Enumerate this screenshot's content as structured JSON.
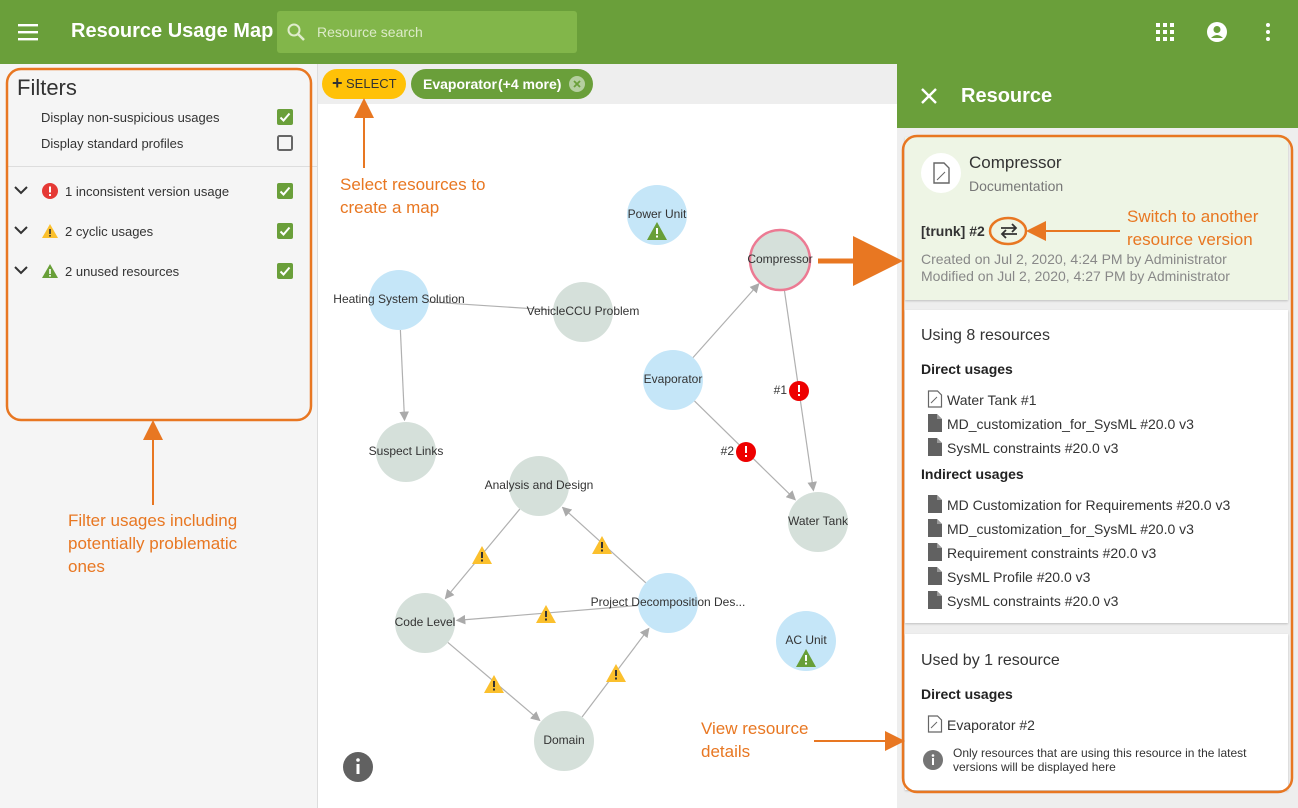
{
  "app_bar": {
    "title": "Resource Usage Map",
    "search_placeholder": "Resource search"
  },
  "filters": {
    "title": "Filters",
    "options": [
      {
        "label": "Display non-suspicious usages",
        "checked": true
      },
      {
        "label": "Display standard profiles",
        "checked": false
      }
    ],
    "groups": [
      {
        "label": "1 inconsistent version usage",
        "severity": "error",
        "checked": true
      },
      {
        "label": "2 cyclic usages",
        "severity": "warning",
        "checked": true
      },
      {
        "label": "2 unused resources",
        "severity": "unused",
        "checked": true
      }
    ]
  },
  "toolbar": {
    "select_button": "SELECT",
    "chip": {
      "name": "Evaporator",
      "more": "(+4 more)"
    }
  },
  "map": {
    "nodes": [
      {
        "label": "Power Unit",
        "color": "#c5e6f8"
      },
      {
        "label": "Compressor",
        "color": "#d5e0da"
      },
      {
        "label": "Heating System Solution",
        "color": "#c5e6f8"
      },
      {
        "label": "VehicleCCU Problem",
        "color": "#d5e0da"
      },
      {
        "label": "Evaporator",
        "color": "#c5e6f8"
      },
      {
        "label": "Suspect Links",
        "color": "#d5e0da"
      },
      {
        "label": "Analysis and Design",
        "color": "#d5e0da"
      },
      {
        "label": "Water Tank",
        "color": "#d5e0da"
      },
      {
        "label": "Project Decomposition Des...",
        "color": "#c5e6f8"
      },
      {
        "label": "Code Level",
        "color": "#d5e0da"
      },
      {
        "label": "AC Unit",
        "color": "#c5e6f8"
      },
      {
        "label": "Domain",
        "color": "#d5e0da"
      }
    ],
    "edge_labels": [
      "#1",
      "#2"
    ]
  },
  "resource_panel": {
    "title": "Resource",
    "summary": {
      "name": "Compressor",
      "kind": "Documentation",
      "version": "[trunk] #2",
      "created": "Created on Jul 2, 2020, 4:24 PM by Administrator",
      "modified": "Modified on Jul 2, 2020, 4:27 PM by Administrator"
    },
    "using": {
      "title": "Using 8 resources",
      "direct_title": "Direct usages",
      "direct": [
        "Water Tank #1",
        "MD_customization_for_SysML #20.0 v3",
        "SysML constraints #20.0 v3"
      ],
      "indirect_title": "Indirect usages",
      "indirect": [
        "MD Customization for Requirements #20.0 v3",
        "MD_customization_for_SysML #20.0 v3",
        "Requirement constraints #20.0 v3",
        "SysML Profile #20.0 v3",
        "SysML constraints #20.0 v3"
      ]
    },
    "used_by": {
      "title": "Used by 1 resource",
      "direct_title": "Direct usages",
      "direct": [
        "Evaporator #2"
      ],
      "note": "Only resources that are using this resource in the latest versions will be displayed here"
    }
  },
  "annotations": {
    "select": [
      "Select resources to",
      "create a map"
    ],
    "switch": [
      "Switch to another",
      "resource version"
    ],
    "filter": [
      "Filter usages including",
      "potentially problematic",
      "ones"
    ],
    "details": [
      "View resource",
      "details"
    ]
  }
}
